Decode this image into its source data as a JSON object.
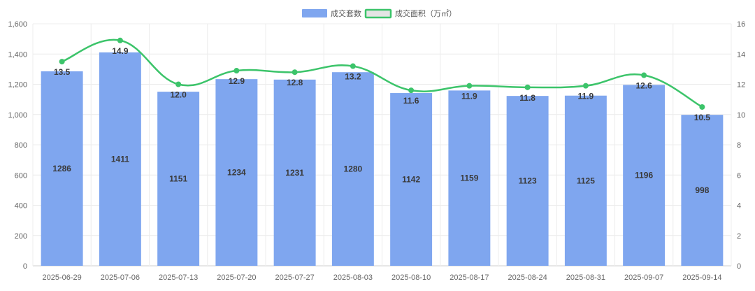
{
  "chart_data": {
    "type": "bar",
    "categories": [
      "2025-06-29",
      "2025-07-06",
      "2025-07-13",
      "2025-07-20",
      "2025-07-27",
      "2025-08-03",
      "2025-08-10",
      "2025-08-17",
      "2025-08-24",
      "2025-08-31",
      "2025-09-07",
      "2025-09-14"
    ],
    "series": [
      {
        "name": "成交套数",
        "type": "bar",
        "axis": "left",
        "values": [
          1286,
          1411,
          1151,
          1234,
          1231,
          1280,
          1142,
          1159,
          1123,
          1125,
          1196,
          998
        ],
        "labels": [
          "1286",
          "1411",
          "1151",
          "1234",
          "1231",
          "1280",
          "1142",
          "1159",
          "1123",
          "1125",
          "1196",
          "998"
        ],
        "color": "#7fa6ef"
      },
      {
        "name": "成交面积（万㎡）",
        "type": "line",
        "axis": "right",
        "values": [
          13.5,
          14.9,
          12.0,
          12.9,
          12.8,
          13.2,
          11.6,
          11.9,
          11.8,
          11.9,
          12.6,
          10.5
        ],
        "labels": [
          "13.5",
          "14.9",
          "12.0",
          "12.9",
          "12.8",
          "13.2",
          "11.6",
          "11.9",
          "11.8",
          "11.9",
          "12.6",
          "10.5"
        ],
        "color": "#3cc46a"
      }
    ],
    "y_left": {
      "min": 0,
      "max": 1600,
      "ticks": [
        "0",
        "200",
        "400",
        "600",
        "800",
        "1,000",
        "1,200",
        "1,400",
        "1,600"
      ]
    },
    "y_right": {
      "min": 0,
      "max": 16,
      "ticks": [
        "0",
        "2",
        "4",
        "6",
        "8",
        "10",
        "12",
        "14",
        "16"
      ]
    },
    "legend_position": "top-center",
    "grid": true
  }
}
